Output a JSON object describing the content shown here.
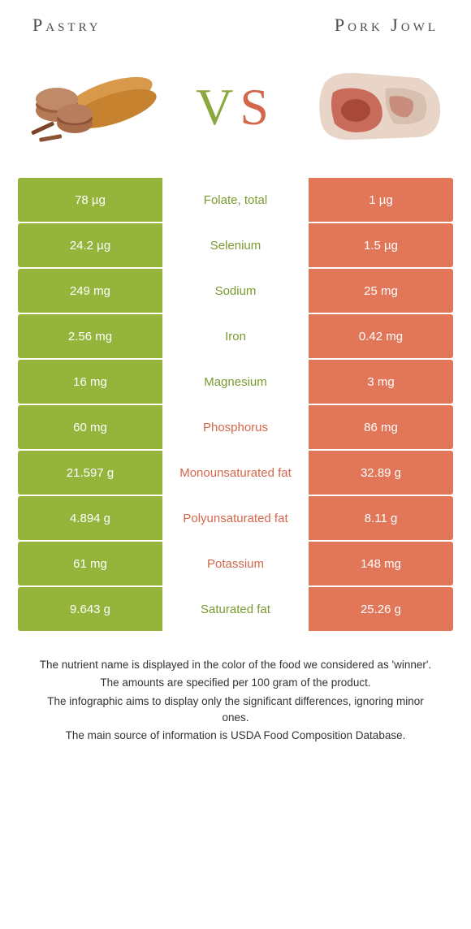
{
  "titles": {
    "left": "Pastry",
    "right": "Pork Jowl"
  },
  "vs": {
    "v": "V",
    "s": "S"
  },
  "colors": {
    "left_bg": "#94b43b",
    "right_bg": "#e27659",
    "label_green": "#7a9a2f",
    "label_orange": "#d4674a"
  },
  "rows": [
    {
      "left": "78 µg",
      "label": "Folate, total",
      "right": "1 µg",
      "winner": "green"
    },
    {
      "left": "24.2 µg",
      "label": "Selenium",
      "right": "1.5 µg",
      "winner": "green"
    },
    {
      "left": "249 mg",
      "label": "Sodium",
      "right": "25 mg",
      "winner": "green"
    },
    {
      "left": "2.56 mg",
      "label": "Iron",
      "right": "0.42 mg",
      "winner": "green"
    },
    {
      "left": "16 mg",
      "label": "Magnesium",
      "right": "3 mg",
      "winner": "green"
    },
    {
      "left": "60 mg",
      "label": "Phosphorus",
      "right": "86 mg",
      "winner": "orange"
    },
    {
      "left": "21.597 g",
      "label": "Monounsaturated fat",
      "right": "32.89 g",
      "winner": "orange"
    },
    {
      "left": "4.894 g",
      "label": "Polyunsaturated fat",
      "right": "8.11 g",
      "winner": "orange"
    },
    {
      "left": "61 mg",
      "label": "Potassium",
      "right": "148 mg",
      "winner": "orange"
    },
    {
      "left": "9.643 g",
      "label": "Saturated fat",
      "right": "25.26 g",
      "winner": "green"
    }
  ],
  "footer": [
    "The nutrient name is displayed in the color of the food we considered as 'winner'.",
    "The amounts are specified per 100 gram of the product.",
    "The infographic aims to display only the significant differences, ignoring minor ones.",
    "The main source of information is USDA Food Composition Database."
  ]
}
